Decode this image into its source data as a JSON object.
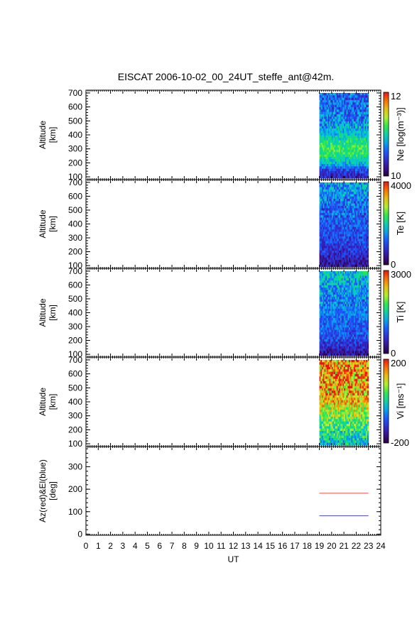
{
  "chart_data": {
    "type": "heatmap",
    "title": "EISCAT 2006-10-02_00_24UT_steffe_ant@42m.",
    "xlabel": "UT",
    "x_ticks": [
      "0",
      "1",
      "2",
      "3",
      "4",
      "5",
      "6",
      "7",
      "8",
      "9",
      "10",
      "11",
      "12",
      "13",
      "14",
      "15",
      "16",
      "17",
      "18",
      "19",
      "20",
      "21",
      "22",
      "23",
      "24"
    ],
    "xlim": [
      0,
      24
    ],
    "data_range_ut": [
      19,
      23
    ],
    "panels": [
      {
        "key": "ne",
        "ylabel_line1": "Altitude",
        "ylabel_line2": "[km]",
        "y_ticks": [
          "100",
          "200",
          "300",
          "400",
          "500",
          "600",
          "700"
        ],
        "ylim": [
          80,
          720
        ],
        "colorbar_label": "Ne [log(m⁻³)]",
        "colorbar_max": "12",
        "colorbar_min": "10",
        "colorscale": "rainbow",
        "profile": [
          [
            100,
            0.15
          ],
          [
            150,
            0.25
          ],
          [
            200,
            0.45
          ],
          [
            250,
            0.55
          ],
          [
            300,
            0.6
          ],
          [
            350,
            0.55
          ],
          [
            400,
            0.45
          ],
          [
            500,
            0.35
          ],
          [
            600,
            0.3
          ],
          [
            700,
            0.3
          ]
        ]
      },
      {
        "key": "te",
        "ylabel_line1": "Altitude",
        "ylabel_line2": "[km]",
        "y_ticks": [
          "100",
          "200",
          "300",
          "400",
          "500",
          "600",
          "700"
        ],
        "ylim": [
          80,
          720
        ],
        "colorbar_label": "Te [K]",
        "colorbar_max": "4000",
        "colorbar_min": "0",
        "colorscale": "rainbow",
        "profile": [
          [
            100,
            0.1
          ],
          [
            200,
            0.2
          ],
          [
            300,
            0.25
          ],
          [
            400,
            0.28
          ],
          [
            500,
            0.3
          ],
          [
            600,
            0.35
          ],
          [
            700,
            0.4
          ]
        ]
      },
      {
        "key": "ti",
        "ylabel_line1": "Altitude",
        "ylabel_line2": "[km]",
        "y_ticks": [
          "100",
          "200",
          "300",
          "400",
          "500",
          "600",
          "700"
        ],
        "ylim": [
          80,
          720
        ],
        "colorbar_label": "Ti [K]",
        "colorbar_max": "3000",
        "colorbar_min": "0",
        "colorscale": "rainbow",
        "profile": [
          [
            100,
            0.1
          ],
          [
            200,
            0.25
          ],
          [
            300,
            0.3
          ],
          [
            400,
            0.33
          ],
          [
            500,
            0.36
          ],
          [
            600,
            0.4
          ],
          [
            700,
            0.45
          ]
        ]
      },
      {
        "key": "vi",
        "ylabel_line1": "Altitude",
        "ylabel_line2": "[km]",
        "y_ticks": [
          "100",
          "200",
          "300",
          "400",
          "500",
          "600",
          "700"
        ],
        "ylim": [
          80,
          720
        ],
        "colorbar_label": "Vi [ms⁻¹]",
        "colorbar_max": "200",
        "colorbar_min": "-200",
        "colorscale": "rainbow",
        "profile": [
          [
            100,
            0.45
          ],
          [
            200,
            0.55
          ],
          [
            300,
            0.65
          ],
          [
            400,
            0.8
          ],
          [
            500,
            0.85
          ],
          [
            600,
            0.85
          ],
          [
            700,
            0.85
          ]
        ]
      }
    ],
    "antenna": {
      "ylabel_line1": "Az(red)&El(blue)",
      "ylabel_line2": "[deg]",
      "y_ticks": [
        "0",
        "100",
        "200",
        "300"
      ],
      "ylim": [
        -5,
        390
      ],
      "series": [
        {
          "color": "#ff5050",
          "x": [
            19,
            23
          ],
          "y": [
            182,
            182
          ]
        },
        {
          "color": "#5050ff",
          "x": [
            19,
            23
          ],
          "y": [
            82,
            82
          ]
        }
      ]
    }
  }
}
